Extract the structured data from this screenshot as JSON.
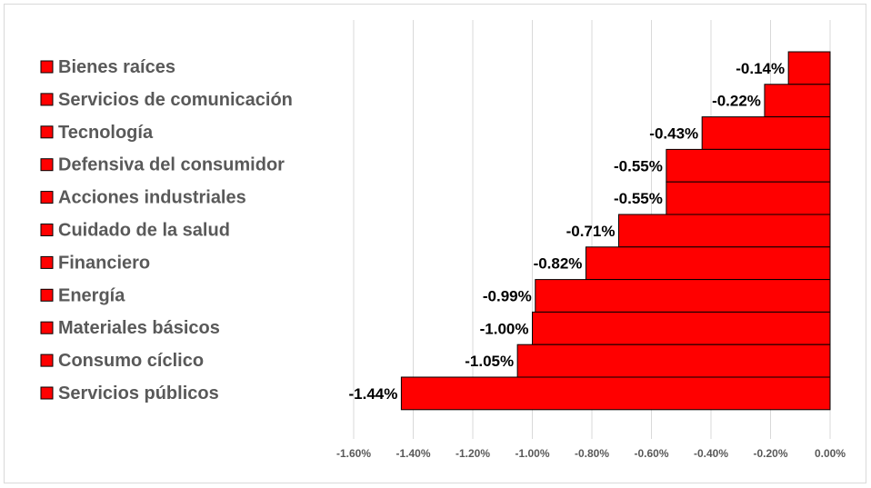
{
  "chart_data": {
    "type": "bar",
    "orientation": "horizontal",
    "categories": [
      "Bienes raíces",
      "Servicios de comunicación",
      "Tecnología",
      "Defensiva del consumidor",
      "Acciones industriales",
      "Cuidado de la salud",
      "Financiero",
      "Energía",
      "Materiales básicos",
      "Consumo cíclico",
      "Servicios públicos"
    ],
    "values": [
      -0.14,
      -0.22,
      -0.43,
      -0.55,
      -0.55,
      -0.71,
      -0.82,
      -0.99,
      -1.0,
      -1.05,
      -1.44
    ],
    "data_labels": [
      "-0.14%",
      "-0.22%",
      "-0.43%",
      "-0.55%",
      "-0.55%",
      "-0.71%",
      "-0.82%",
      "-0.99%",
      "-1.00%",
      "-1.05%",
      "-1.44%"
    ],
    "x_ticks": [
      "-1.60%",
      "-1.40%",
      "-1.20%",
      "-1.00%",
      "-0.80%",
      "-0.60%",
      "-0.40%",
      "-0.20%",
      "0.00%"
    ],
    "xlim": [
      -1.6,
      0
    ],
    "grid": "vertical",
    "legend": "left",
    "bar_color": "#ff0000",
    "bar_border_color": "#000000"
  }
}
